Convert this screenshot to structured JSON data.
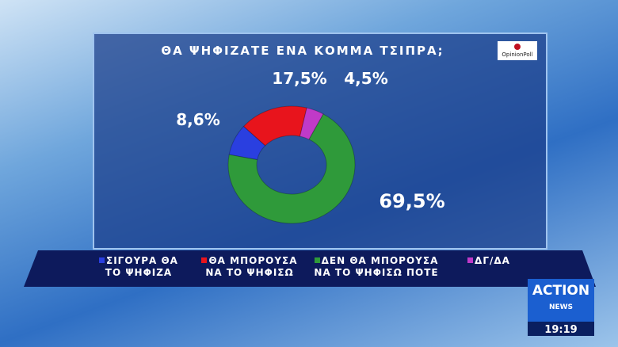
{
  "chart_data": {
    "type": "donut",
    "title": "ΘΑ ΨΗΦΙΖΑΤΕ ΕΝΑ ΚΟΜΜΑ ΤΣΙΠΡΑ;",
    "categories": [
      "ΣΙΓΟΥΡΑ ΘΑ ΤΟ ΨΗΦΙΖΑ",
      "ΘΑ ΜΠΟΡΟΥΣΑ ΝΑ ΤΟ ΨΗΦΙΣΩ",
      "ΔΓ/ΔΑ",
      "ΔΕΝ ΘΑ ΜΠΟΡΟΥΣΑ ΝΑ ΤΟ ΨΗΦΙΣΩ ΠΟΤΕ"
    ],
    "values": [
      8.6,
      17.5,
      4.5,
      69.5
    ],
    "value_labels": [
      "8,6%",
      "17,5%",
      "4,5%",
      "69,5%"
    ],
    "colors": [
      "#2a3fe0",
      "#e8141c",
      "#c03ac8",
      "#2f9a3a"
    ]
  },
  "overlay": {
    "poll_logo": "OpinionPoll",
    "channel": "ACTION",
    "channel_sub": "NEWS",
    "clock": "19:19"
  }
}
